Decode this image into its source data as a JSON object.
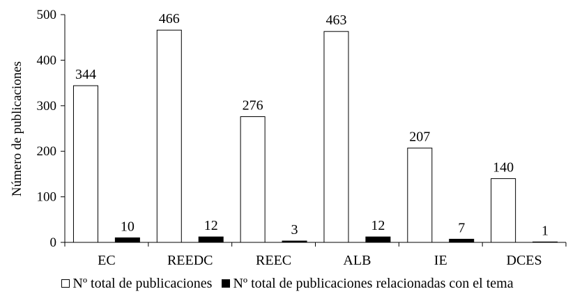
{
  "chart_data": {
    "type": "bar",
    "categories": [
      "EC",
      "REEDC",
      "REEC",
      "ALB",
      "IE",
      "DCES"
    ],
    "series": [
      {
        "name": "Nº total de publicaciones",
        "values": [
          344,
          466,
          276,
          463,
          207,
          140
        ],
        "fill": "#ffffff",
        "stroke": "#000000"
      },
      {
        "name": "Nº total de publicaciones relacionadas con el tema",
        "values": [
          10,
          12,
          3,
          12,
          7,
          1
        ],
        "fill": "#000000",
        "stroke": "#000000"
      }
    ],
    "ylabel": "Número de publicaciones",
    "xlabel": "",
    "ylim": [
      0,
      500
    ],
    "yticks": [
      0,
      100,
      200,
      300,
      400,
      500
    ],
    "grid": false,
    "legend_position": "bottom",
    "data_labels": true
  }
}
